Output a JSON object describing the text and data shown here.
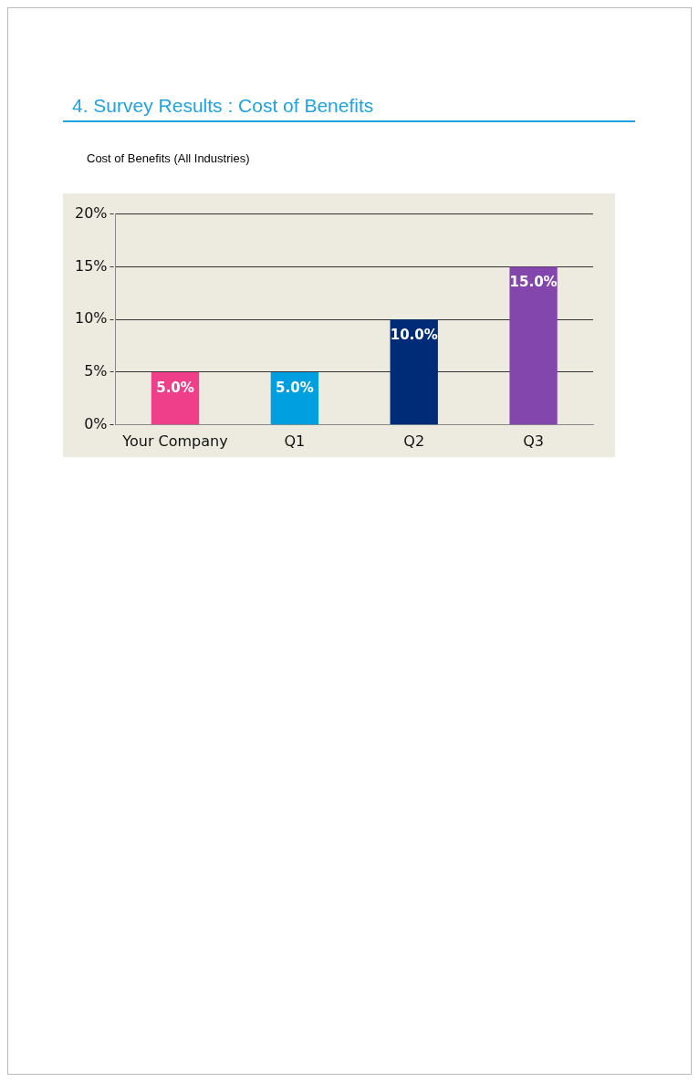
{
  "chart_data": {
    "type": "bar",
    "title": "4. Survey Results : Cost of Benefits",
    "subtitle": "Cost of Benefits (All Industries)",
    "categories": [
      "Your Company",
      "Q1",
      "Q2",
      "Q3"
    ],
    "values": [
      5,
      5,
      10,
      15
    ],
    "colors": [
      "#ef3f8a",
      "#009fe0",
      "#002b77",
      "#8246ad"
    ],
    "value_labels": [
      "5.0%",
      "5.0%",
      "10.0%",
      "15.0%"
    ],
    "ylim": [
      0,
      20
    ],
    "yticks": [
      {
        "value": 0,
        "label": "0%"
      },
      {
        "value": 5,
        "label": "5%"
      },
      {
        "value": 10,
        "label": "10%"
      },
      {
        "value": 15,
        "label": "15%"
      },
      {
        "value": 20,
        "label": "20%"
      }
    ],
    "grid": "y",
    "legend": false
  }
}
